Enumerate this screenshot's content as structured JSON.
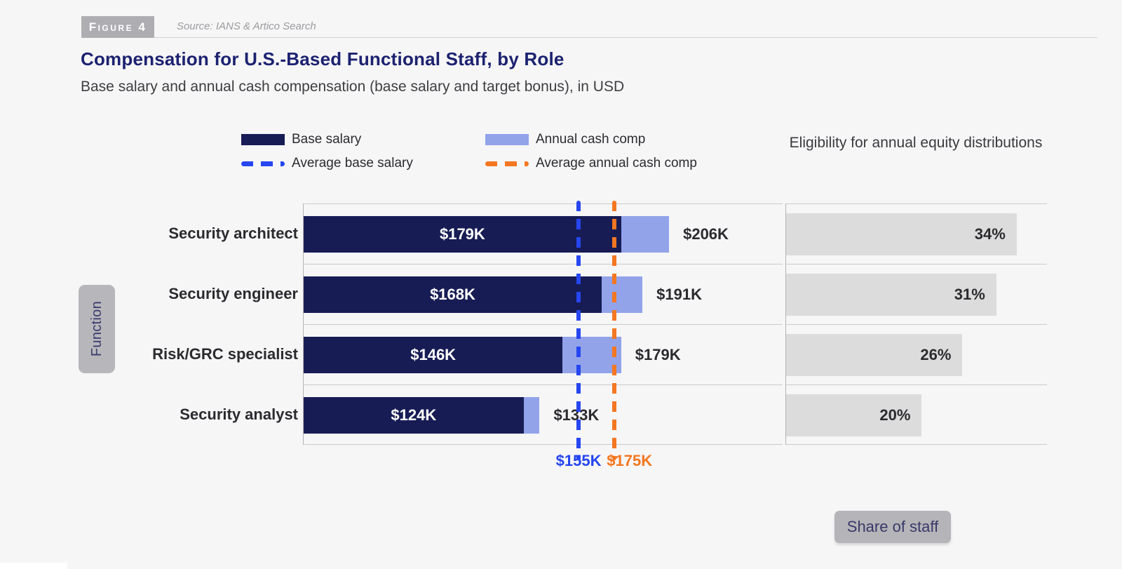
{
  "figure": {
    "label": "Figure 4",
    "source": "Source: IANS & Artico Search"
  },
  "title": "Compensation for U.S.-Based Functional Staff, by Role",
  "subtitle": "Base salary and annual cash compensation (base salary and target bonus), in USD",
  "legend": [
    {
      "type": "swatch",
      "color": "#171c55",
      "label": "Base salary"
    },
    {
      "type": "swatch",
      "color": "#92a3ea",
      "label": "Annual cash comp"
    },
    {
      "type": "dash",
      "color": "#2546f0",
      "label": "Average base salary"
    },
    {
      "type": "dash",
      "color": "#f47721",
      "label": "Average annual cash comp"
    }
  ],
  "right_heading": "Eligibility for annual equity distributions",
  "function_tag": "Function",
  "share_tag": "Share of staff",
  "chart_data": {
    "type": "bar",
    "orientation": "horizontal",
    "title": "Compensation for U.S.-Based Functional Staff, by Role",
    "subtitle": "Base salary and annual cash compensation (base salary and target bonus), in USD",
    "unit": "USD thousands",
    "xmax_k": 270,
    "categories": [
      "Security architect",
      "Security engineer",
      "Risk/GRC specialist",
      "Security analyst"
    ],
    "series": [
      {
        "name": "Base salary",
        "color": "#171c55",
        "values": [
          179,
          168,
          146,
          124
        ],
        "labels": [
          "$179K",
          "$168K",
          "$146K",
          "$124K"
        ]
      },
      {
        "name": "Annual cash comp",
        "color": "#92a3ea",
        "values": [
          206,
          191,
          179,
          133
        ],
        "labels": [
          "$206K",
          "$191K",
          "$179K",
          "$133K"
        ]
      }
    ],
    "averages": [
      {
        "name": "Average base salary",
        "value": 155,
        "label": "$155K",
        "color": "#2546f0"
      },
      {
        "name": "Average annual cash comp",
        "value": 175,
        "label": "$175K",
        "color": "#f47721"
      }
    ],
    "equity": {
      "name": "Eligibility for annual equity distributions",
      "axis_tag": "Share of staff",
      "values": [
        34,
        31,
        26,
        20
      ],
      "labels": [
        "34%",
        "31%",
        "26%",
        "20%"
      ]
    }
  }
}
